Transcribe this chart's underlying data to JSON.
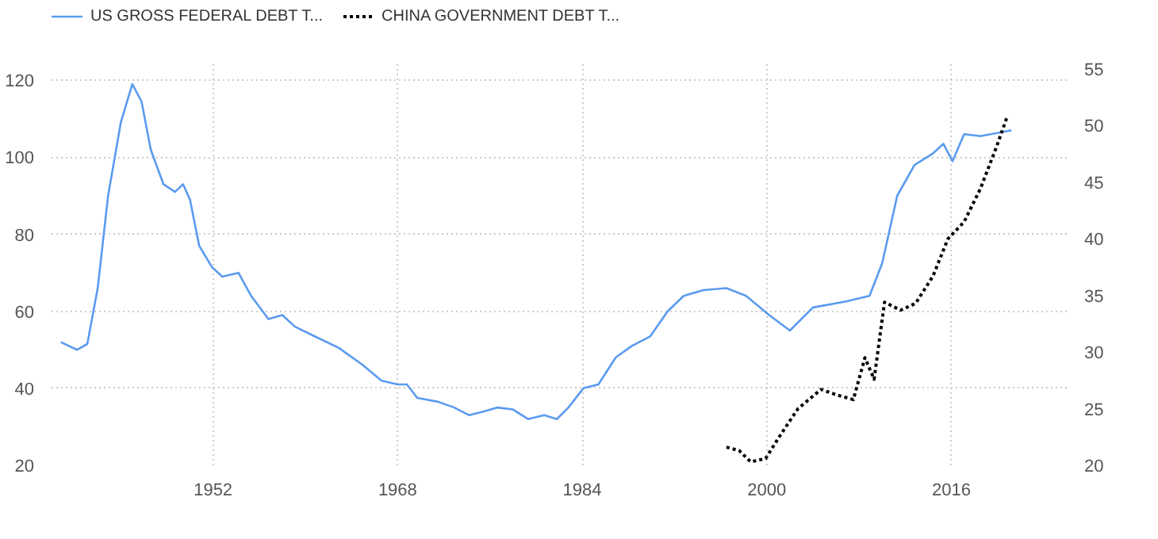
{
  "chart_data": {
    "type": "line",
    "xlim": [
      1938,
      2026
    ],
    "xticks": [
      1952,
      1968,
      1984,
      2000,
      2016
    ],
    "ylim": [
      20,
      125
    ],
    "yticks": [
      20,
      40,
      60,
      80,
      100,
      120
    ],
    "y2lim": [
      20,
      55.7
    ],
    "y2ticks": [
      20,
      25,
      30,
      35,
      40,
      45,
      50,
      55
    ],
    "grid": true,
    "legend": "top left",
    "series": [
      {
        "name": "US GROSS FEDERAL DEBT T...",
        "color": "#5b9bef",
        "line_style": "solid",
        "x": [
          1938.8,
          1940.2,
          1941.1,
          1942,
          1942.9,
          1944,
          1945,
          1945.8,
          1946.6,
          1947.7,
          1948.7,
          1949.4,
          1950,
          1950.8,
          1951.9,
          1952.8,
          1954.2,
          1955.3,
          1956.8,
          1958,
          1959.1,
          1960.8,
          1962.9,
          1965,
          1966.6,
          1968,
          1968.8,
          1969.7,
          1971.5,
          1972.9,
          1974.2,
          1975.5,
          1976.6,
          1978,
          1979.3,
          1980.7,
          1981.8,
          1982.8,
          1984.1,
          1985.4,
          1986.9,
          1988.3,
          1989.9,
          1991.4,
          1992.8,
          1994.5,
          1996.5,
          1998.2,
          2000.2,
          2002,
          2004,
          2006.8,
          2008.9,
          2010,
          2011.3,
          2012.8,
          2014.4,
          2015.3,
          2016.1,
          2017.1,
          2018.5,
          2021.2
        ],
        "values": [
          52,
          50,
          51.5,
          66,
          90,
          109,
          119,
          114.5,
          102,
          93,
          91,
          93,
          89,
          77,
          71.5,
          69,
          70,
          64,
          58,
          59,
          56,
          53.5,
          50.5,
          46,
          42,
          41,
          41,
          37.5,
          36.5,
          35,
          33,
          34,
          35,
          34.5,
          32,
          33,
          32,
          35,
          40,
          41,
          48,
          51,
          53.5,
          60,
          64,
          65.5,
          66,
          64,
          59,
          55,
          61,
          62.5,
          64,
          72.5,
          90,
          98,
          101,
          103.5,
          99,
          106,
          105.5,
          107
        ]
      },
      {
        "name": "CHINA GOVERNMENT DEBT T...",
        "color": "#000000",
        "line_style": "dotted",
        "axis": "y2",
        "x": [
          1996.5,
          1997.6,
          1998.6,
          1999.9,
          2001,
          2002.7,
          2004.7,
          2006.1,
          2007.5,
          2008.5,
          2009.3,
          2010.2,
          2011.6,
          2012.9,
          2014.4,
          2015.7,
          2017.1,
          2018.5,
          2019.9,
          2020.8
        ],
        "values": [
          21.6,
          21.3,
          20.3,
          20.6,
          22.4,
          25,
          26.7,
          26.2,
          25.8,
          29.5,
          27.6,
          34.4,
          33.7,
          34.3,
          36.7,
          40,
          41.5,
          44.4,
          48.1,
          50.7
        ]
      }
    ]
  }
}
